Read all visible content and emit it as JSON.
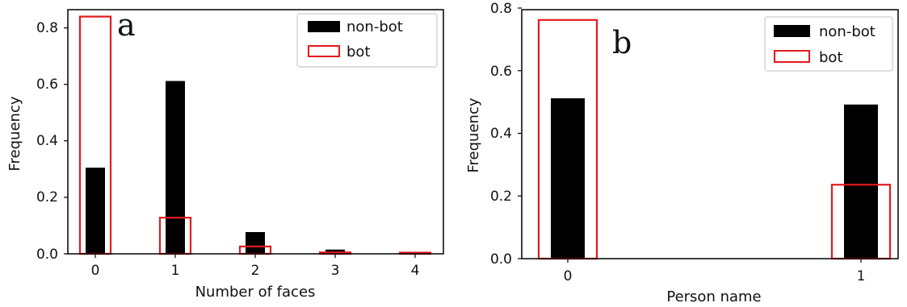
{
  "chart_data": [
    {
      "type": "bar",
      "panel_label": "a",
      "title": "",
      "xlabel": "Number of faces",
      "ylabel": "Frequency",
      "categories": [
        "0",
        "1",
        "2",
        "3",
        "4"
      ],
      "ylim": [
        0,
        0.86
      ],
      "yticks": [
        "0.0",
        "0.2",
        "0.4",
        "0.6",
        "0.8"
      ],
      "legend_position": "top-right",
      "series": [
        {
          "name": "non-bot",
          "style": "filled",
          "color": "#000000",
          "values": [
            0.305,
            0.612,
            0.077,
            0.015,
            0.001
          ]
        },
        {
          "name": "bot",
          "style": "outline",
          "color": "#e31a1c",
          "values": [
            0.84,
            0.128,
            0.026,
            0.005,
            0.002
          ]
        }
      ]
    },
    {
      "type": "bar",
      "panel_label": "b",
      "title": "",
      "xlabel": "Person name",
      "ylabel": "Frequency",
      "categories": [
        "0",
        "1"
      ],
      "ylim": [
        0,
        0.8
      ],
      "yticks": [
        "0.0",
        "0.2",
        "0.4",
        "0.6",
        "0.8"
      ],
      "legend_position": "top-right",
      "series": [
        {
          "name": "non-bot",
          "style": "filled",
          "color": "#000000",
          "values": [
            0.512,
            0.492
          ]
        },
        {
          "name": "bot",
          "style": "outline",
          "color": "#e31a1c",
          "values": [
            0.762,
            0.236
          ]
        }
      ]
    }
  ]
}
